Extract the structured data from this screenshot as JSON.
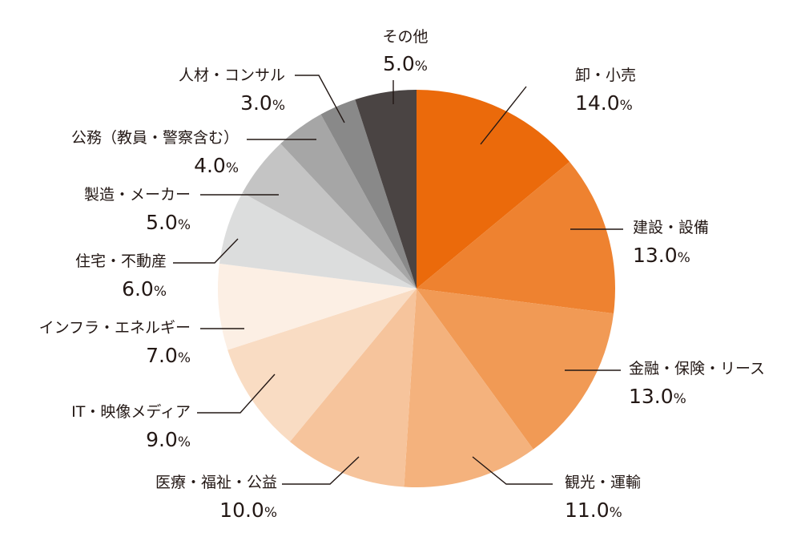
{
  "chart_data": {
    "type": "pie",
    "title": "",
    "start": "top",
    "direction": "clockwise",
    "unit": "%",
    "slices": [
      {
        "label": "卸・小売",
        "value": 14.0,
        "value_text": "14.0",
        "color": "#eb6a0b"
      },
      {
        "label": "建設・設備",
        "value": 13.0,
        "value_text": "13.0",
        "color": "#ee8230"
      },
      {
        "label": "金融・保険・リース",
        "value": 13.0,
        "value_text": "13.0",
        "color": "#f19a55"
      },
      {
        "label": "観光・運輸",
        "value": 11.0,
        "value_text": "11.0",
        "color": "#f4b27d"
      },
      {
        "label": "医療・福祉・公益",
        "value": 10.0,
        "value_text": "10.0",
        "color": "#f6c49c"
      },
      {
        "label": "IT・映像メディア",
        "value": 9.0,
        "value_text": "9.0",
        "color": "#f9dcc3"
      },
      {
        "label": "インフラ・エネルギー",
        "value": 7.0,
        "value_text": "7.0",
        "color": "#fcefe4"
      },
      {
        "label": "住宅・不動産",
        "value": 6.0,
        "value_text": "6.0",
        "color": "#dcdddd"
      },
      {
        "label": "製造・メーカー",
        "value": 5.0,
        "value_text": "5.0",
        "color": "#c4c4c4"
      },
      {
        "label": "公務（教員・警察含む）",
        "value": 4.0,
        "value_text": "4.0",
        "color": "#a6a6a6"
      },
      {
        "label": "人材・コンサル",
        "value": 3.0,
        "value_text": "3.0",
        "color": "#898989"
      },
      {
        "label": "その他",
        "value": 5.0,
        "value_text": "5.0",
        "color": "#4a4443"
      }
    ]
  }
}
